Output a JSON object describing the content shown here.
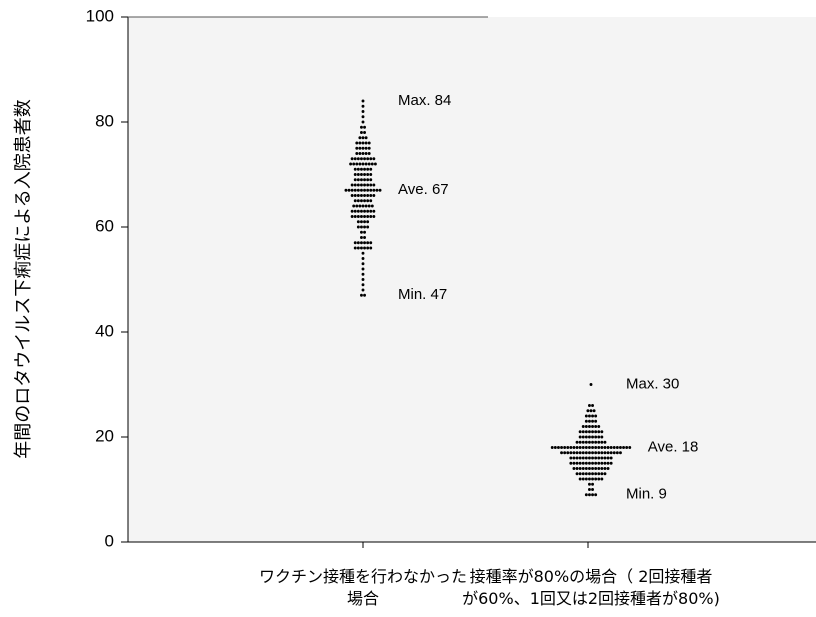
{
  "chart_data": {
    "type": "scatter",
    "title": "",
    "ylabel": "年間のロタウイルス下痢症による入院患者数",
    "xlabel": "",
    "ylim": [
      0,
      100
    ],
    "yticks": [
      0,
      20,
      40,
      60,
      80,
      100
    ],
    "grid": false,
    "plot_background": "#f4f4f4",
    "marker_color": "#000000",
    "categories": [
      {
        "label_lines": [
          "ワクチン接種を行わなかった",
          "場合"
        ],
        "max": 84,
        "ave": 67,
        "min": 47,
        "annotations": [
          "Max. 84",
          "Ave. 67",
          "Min. 47"
        ],
        "counts": {
          "47": 2,
          "48": 1,
          "49": 1,
          "50": 1,
          "51": 1,
          "52": 1,
          "53": 1,
          "54": 1,
          "55": 1,
          "56": 6,
          "57": 6,
          "58": 2,
          "59": 2,
          "60": 4,
          "61": 4,
          "62": 8,
          "63": 8,
          "64": 7,
          "65": 6,
          "66": 8,
          "67": 12,
          "68": 8,
          "69": 6,
          "70": 6,
          "71": 6,
          "72": 9,
          "73": 8,
          "74": 5,
          "75": 5,
          "76": 5,
          "77": 3,
          "78": 2,
          "79": 2,
          "80": 1,
          "81": 1,
          "82": 1,
          "83": 1,
          "84": 1
        }
      },
      {
        "label_lines": [
          "接種率が80%の場合（ 2回接種者",
          "が60%、1回又は2回接種者が80%)"
        ],
        "max": 30,
        "ave": 18,
        "min": 9,
        "annotations": [
          "Max. 30",
          "Ave. 18",
          "Min. 9"
        ],
        "counts": {
          "9": 4,
          "10": 2,
          "11": 2,
          "12": 8,
          "13": 10,
          "14": 12,
          "15": 14,
          "16": 14,
          "17": 20,
          "18": 26,
          "19": 10,
          "20": 8,
          "21": 8,
          "22": 6,
          "23": 4,
          "24": 4,
          "25": 3,
          "26": 2,
          "30": 1
        }
      }
    ]
  }
}
